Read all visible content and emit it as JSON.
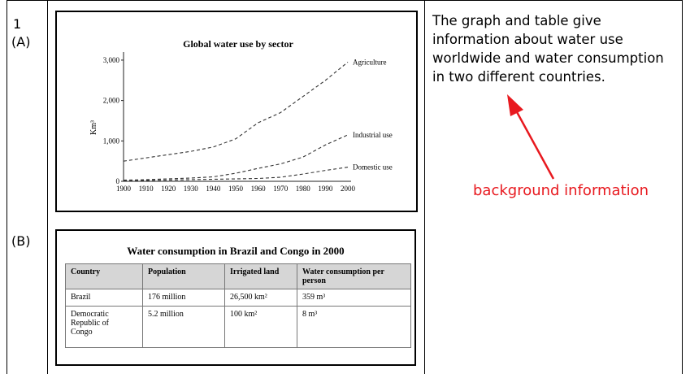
{
  "question": {
    "number": "1",
    "part_a": "(A)",
    "part_b": "(B)"
  },
  "description": "The graph and table give information about water use worldwide and water consumption in two different countries.",
  "annotation": {
    "label": "background information",
    "color": "#e8191f"
  },
  "chart_data": {
    "type": "line",
    "title": "Global water use by sector",
    "xlabel": "",
    "ylabel": "Km³",
    "x": [
      1900,
      1910,
      1920,
      1930,
      1940,
      1950,
      1960,
      1970,
      1980,
      1990,
      2000
    ],
    "x_ticks": [
      "1900",
      "1910",
      "1920",
      "1930",
      "1940",
      "1950",
      "1960",
      "1970",
      "1980",
      "1990",
      "2000"
    ],
    "y_ticks": [
      {
        "value": 0,
        "label": "0"
      },
      {
        "value": 1000,
        "label": "1,000"
      },
      {
        "value": 2000,
        "label": "2,000"
      },
      {
        "value": 3000,
        "label": "3,000"
      }
    ],
    "ylim": [
      0,
      3200
    ],
    "xlim": [
      1900,
      2000
    ],
    "grid": false,
    "line_style": "dashed",
    "series": [
      {
        "name": "Agriculture",
        "values": [
          500,
          580,
          660,
          740,
          850,
          1050,
          1450,
          1700,
          2100,
          2500,
          2950
        ]
      },
      {
        "name": "Industrial use",
        "values": [
          30,
          40,
          60,
          80,
          110,
          200,
          320,
          430,
          600,
          900,
          1150
        ]
      },
      {
        "name": "Domestic use",
        "values": [
          10,
          20,
          30,
          40,
          50,
          60,
          70,
          100,
          180,
          270,
          350
        ]
      }
    ]
  },
  "table": {
    "title": "Water consumption in Brazil and Congo in 2000",
    "headers": [
      "Country",
      "Population",
      "Irrigated land",
      "Water consumption per person"
    ],
    "rows": [
      [
        "Brazil",
        "176 million",
        "26,500 km²",
        "359 m³"
      ],
      [
        "Democratic Republic of Congo",
        "5.2 million",
        "100 km²",
        "8 m³"
      ]
    ]
  }
}
